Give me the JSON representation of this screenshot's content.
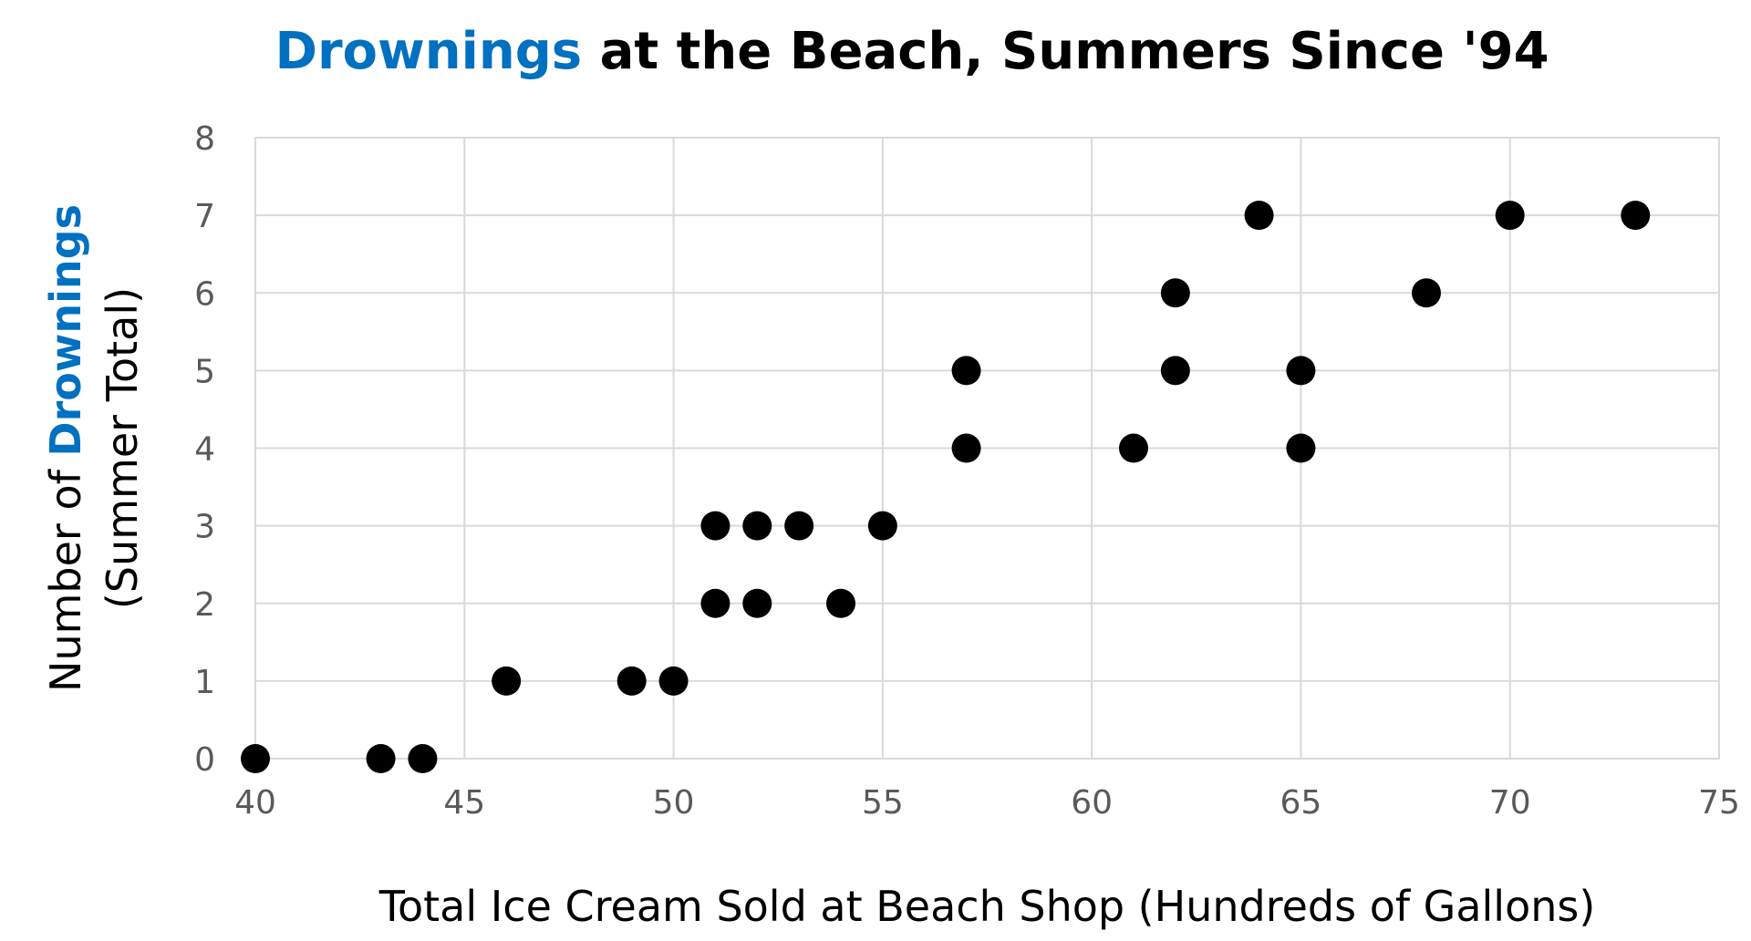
{
  "colors": {
    "accent": "#0070c0",
    "text": "#000000",
    "tick": "#595959",
    "grid": "#d9d9d9",
    "point": "#000000"
  },
  "chart_data": {
    "type": "scatter",
    "title": {
      "highlight": "Drownings",
      "rest": " at the Beach, Summers Since '94"
    },
    "xlabel": "Total Ice Cream Sold at Beach Shop (Hundreds of Gallons)",
    "ylabel": {
      "prefix": "Number of ",
      "highlight": "Drownings",
      "line2": "(Summer Total)"
    },
    "xlim": [
      40,
      75
    ],
    "ylim": [
      0,
      8
    ],
    "x_ticks": [
      "40",
      "45",
      "50",
      "55",
      "60",
      "65",
      "70",
      "75"
    ],
    "y_ticks": [
      "0",
      "1",
      "2",
      "3",
      "4",
      "5",
      "6",
      "7",
      "8"
    ],
    "grid": true,
    "points": [
      {
        "x": 40,
        "y": 0
      },
      {
        "x": 43,
        "y": 0
      },
      {
        "x": 44,
        "y": 0
      },
      {
        "x": 46,
        "y": 1
      },
      {
        "x": 49,
        "y": 1
      },
      {
        "x": 50,
        "y": 1
      },
      {
        "x": 51,
        "y": 2
      },
      {
        "x": 52,
        "y": 2
      },
      {
        "x": 54,
        "y": 2
      },
      {
        "x": 51,
        "y": 3
      },
      {
        "x": 52,
        "y": 3
      },
      {
        "x": 53,
        "y": 3
      },
      {
        "x": 55,
        "y": 3
      },
      {
        "x": 57,
        "y": 4
      },
      {
        "x": 61,
        "y": 4
      },
      {
        "x": 65,
        "y": 4
      },
      {
        "x": 57,
        "y": 5
      },
      {
        "x": 62,
        "y": 5
      },
      {
        "x": 65,
        "y": 5
      },
      {
        "x": 62,
        "y": 6
      },
      {
        "x": 68,
        "y": 6
      },
      {
        "x": 64,
        "y": 7
      },
      {
        "x": 70,
        "y": 7
      },
      {
        "x": 73,
        "y": 7
      }
    ]
  }
}
